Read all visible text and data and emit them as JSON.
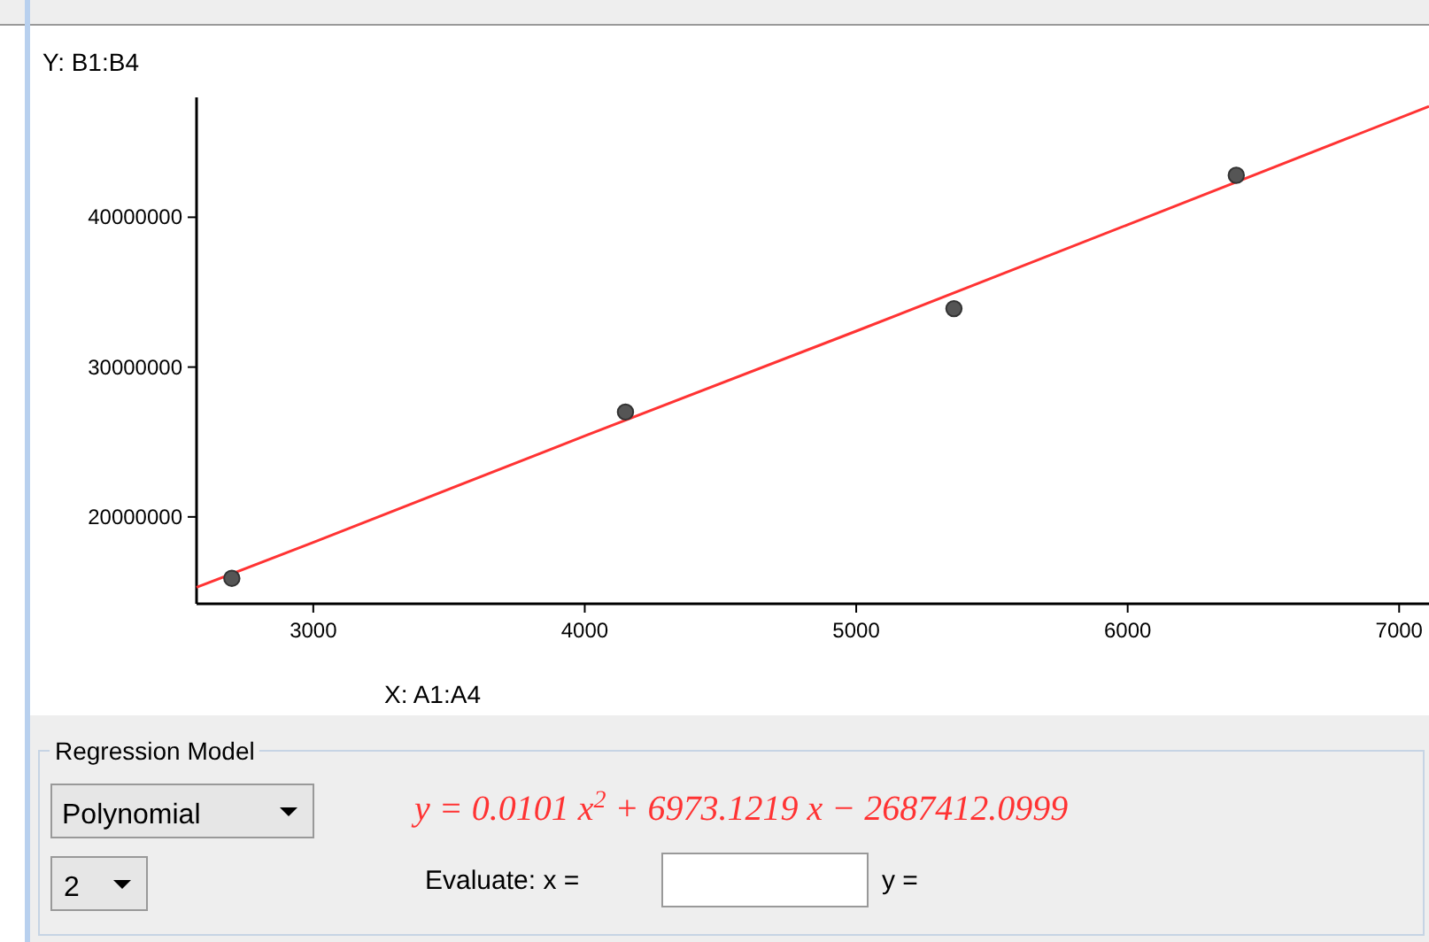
{
  "chart_data": {
    "type": "scatter",
    "xlabel": "X:  A1:A4",
    "ylabel": "Y:  B1:B4",
    "xlim": [
      2570,
      7110
    ],
    "ylim": [
      14200000,
      48000000
    ],
    "xticks": [
      3000,
      4000,
      5000,
      6000,
      7000
    ],
    "yticks": [
      20000000,
      30000000,
      40000000
    ],
    "grid": false,
    "series": [
      {
        "marker": "circle",
        "color": "#555555",
        "x": [
          2700,
          4150,
          5360,
          6400
        ],
        "values": [
          15900000,
          27000000,
          33900000,
          42800000
        ]
      },
      {
        "type": "line",
        "marker": "none",
        "color": "#ff3333",
        "x": [
          2570,
          3000,
          4000,
          5000,
          6000,
          7110
        ],
        "values": [
          15300000,
          18300000,
          25400000,
          32400000,
          39500000,
          47400000
        ]
      }
    ],
    "annotations": [
      "Regression Model",
      "Polynomial",
      "2",
      "y = 0.0101 x$^{2}$ + 6973.1219 x − 2687412.0999",
      "Evaluate:  x =",
      "y ="
    ]
  }
}
